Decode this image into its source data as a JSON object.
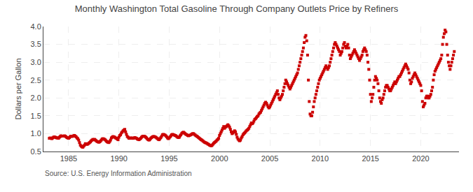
{
  "chart_data": {
    "type": "scatter",
    "title": "Monthly Washington Total Gasoline Through Company Outlets Price by Refiners",
    "y_label": "Dollars per Gallon",
    "source": "Source: U.S. Energy Information Administration",
    "color": "#CC0000",
    "marker": "square",
    "grid": true,
    "xlim": [
      1982.5,
      2023.8
    ],
    "xticks": [
      1985,
      1990,
      1995,
      2000,
      2005,
      2010,
      2015,
      2020
    ],
    "ylim": [
      0.5,
      4.0
    ],
    "yticks": [
      0.5,
      {
        "value": 1.0,
        "label": "1.0"
      },
      1.5,
      {
        "value": 2.0,
        "label": "2.0"
      },
      2.5,
      {
        "value": 3.0,
        "label": "3.0"
      },
      3.5,
      {
        "value": 4.0,
        "label": "4.0"
      }
    ],
    "x": [
      1983.083,
      1983.167,
      1983.25,
      1983.333,
      1983.417,
      1983.5,
      1983.583,
      1983.667,
      1983.75,
      1983.833,
      1983.917,
      1984.0,
      1984.083,
      1984.167,
      1984.25,
      1984.333,
      1984.417,
      1984.5,
      1984.583,
      1984.667,
      1984.75,
      1984.833,
      1984.917,
      1985.0,
      1985.083,
      1985.167,
      1985.25,
      1985.333,
      1985.417,
      1985.5,
      1985.583,
      1985.667,
      1985.75,
      1985.833,
      1985.917,
      1986.0,
      1986.083,
      1986.167,
      1986.25,
      1986.333,
      1986.417,
      1986.5,
      1986.583,
      1986.667,
      1986.75,
      1986.833,
      1986.917,
      1987.0,
      1987.083,
      1987.167,
      1987.25,
      1987.333,
      1987.417,
      1987.5,
      1987.583,
      1987.667,
      1987.75,
      1987.833,
      1987.917,
      1988.0,
      1988.083,
      1988.167,
      1988.25,
      1988.333,
      1988.417,
      1988.5,
      1988.583,
      1988.667,
      1988.75,
      1988.833,
      1988.917,
      1989.0,
      1989.083,
      1989.167,
      1989.25,
      1989.333,
      1989.417,
      1989.5,
      1989.583,
      1989.667,
      1989.75,
      1989.833,
      1989.917,
      1990.0,
      1990.083,
      1990.167,
      1990.25,
      1990.333,
      1990.417,
      1990.5,
      1990.583,
      1990.667,
      1990.75,
      1990.833,
      1990.917,
      1991.0,
      1991.083,
      1991.167,
      1991.25,
      1991.333,
      1991.417,
      1991.5,
      1991.583,
      1991.667,
      1991.75,
      1991.833,
      1991.917,
      1992.0,
      1992.083,
      1992.167,
      1992.25,
      1992.333,
      1992.417,
      1992.5,
      1992.583,
      1992.667,
      1992.75,
      1992.833,
      1992.917,
      1993.0,
      1993.083,
      1993.167,
      1993.25,
      1993.333,
      1993.417,
      1993.5,
      1993.583,
      1993.667,
      1993.75,
      1993.833,
      1993.917,
      1994.0,
      1994.083,
      1994.167,
      1994.25,
      1994.333,
      1994.417,
      1994.5,
      1994.583,
      1994.667,
      1994.75,
      1994.833,
      1994.917,
      1995.0,
      1995.083,
      1995.167,
      1995.25,
      1995.333,
      1995.417,
      1995.5,
      1995.583,
      1995.667,
      1995.75,
      1995.833,
      1995.917,
      1996.0,
      1996.083,
      1996.167,
      1996.25,
      1996.333,
      1996.417,
      1996.5,
      1996.583,
      1996.667,
      1996.75,
      1996.833,
      1996.917,
      1997.0,
      1997.083,
      1997.167,
      1997.25,
      1997.333,
      1997.417,
      1997.5,
      1997.583,
      1997.667,
      1997.75,
      1997.833,
      1997.917,
      1998.0,
      1998.083,
      1998.167,
      1998.25,
      1998.333,
      1998.417,
      1998.5,
      1998.583,
      1998.667,
      1998.75,
      1998.833,
      1998.917,
      1999.0,
      1999.083,
      1999.167,
      1999.25,
      1999.333,
      1999.417,
      1999.5,
      1999.583,
      1999.667,
      1999.75,
      1999.833,
      1999.917,
      2000.0,
      2000.083,
      2000.167,
      2000.25,
      2000.333,
      2000.417,
      2000.5,
      2000.583,
      2000.667,
      2000.75,
      2000.833,
      2000.917,
      2001.0,
      2001.083,
      2001.167,
      2001.25,
      2001.333,
      2001.417,
      2001.5,
      2001.583,
      2001.667,
      2001.75,
      2001.833,
      2001.917,
      2002.0,
      2002.083,
      2002.167,
      2002.25,
      2002.333,
      2002.417,
      2002.5,
      2002.583,
      2002.667,
      2002.75,
      2002.833,
      2002.917,
      2003.0,
      2003.083,
      2003.167,
      2003.25,
      2003.333,
      2003.417,
      2003.5,
      2003.583,
      2003.667,
      2003.75,
      2003.833,
      2003.917,
      2004.0,
      2004.083,
      2004.167,
      2004.25,
      2004.333,
      2004.417,
      2004.5,
      2004.583,
      2004.667,
      2004.75,
      2004.833,
      2004.917,
      2005.0,
      2005.083,
      2005.167,
      2005.25,
      2005.333,
      2005.417,
      2005.5,
      2005.583,
      2005.667,
      2005.75,
      2005.833,
      2005.917,
      2006.0,
      2006.083,
      2006.167,
      2006.25,
      2006.333,
      2006.417,
      2006.5,
      2006.583,
      2006.667,
      2006.75,
      2006.833,
      2006.917,
      2007.0,
      2007.083,
      2007.167,
      2007.25,
      2007.333,
      2007.417,
      2007.5,
      2007.583,
      2007.667,
      2007.75,
      2007.833,
      2007.917,
      2008.0,
      2008.083,
      2008.167,
      2008.25,
      2008.333,
      2008.417,
      2008.5,
      2008.583,
      2008.667,
      2008.75,
      2008.833,
      2008.917,
      2009.0,
      2009.083,
      2009.167,
      2009.25,
      2009.333,
      2009.417,
      2009.5,
      2009.583,
      2009.667,
      2009.75,
      2009.833,
      2009.917,
      2010.0,
      2010.083,
      2010.167,
      2010.25,
      2010.333,
      2010.417,
      2010.5,
      2010.583,
      2010.667,
      2010.75,
      2010.833,
      2010.917,
      2011.0,
      2011.083,
      2011.167,
      2011.25,
      2011.333,
      2011.417,
      2011.5,
      2011.583,
      2011.667,
      2011.75,
      2011.833,
      2011.917,
      2012.0,
      2012.083,
      2012.167,
      2012.25,
      2012.333,
      2012.417,
      2012.5,
      2012.583,
      2012.667,
      2012.75,
      2012.833,
      2012.917,
      2013.0,
      2013.083,
      2013.167,
      2013.25,
      2013.333,
      2013.417,
      2013.5,
      2013.583,
      2013.667,
      2013.75,
      2013.833,
      2013.917,
      2014.0,
      2014.083,
      2014.167,
      2014.25,
      2014.333,
      2014.417,
      2014.5,
      2014.583,
      2014.667,
      2014.75,
      2014.833,
      2014.917,
      2015.0,
      2015.083,
      2015.167,
      2015.25,
      2015.333,
      2015.417,
      2015.5,
      2015.583,
      2015.667,
      2015.75,
      2015.833,
      2015.917,
      2016.0,
      2016.083,
      2016.167,
      2016.25,
      2016.333,
      2016.417,
      2016.5,
      2016.583,
      2016.667,
      2016.75,
      2016.833,
      2016.917,
      2017.0,
      2017.083,
      2017.167,
      2017.25,
      2017.333,
      2017.417,
      2017.5,
      2017.583,
      2017.667,
      2017.75,
      2017.833,
      2017.917,
      2018.0,
      2018.083,
      2018.167,
      2018.25,
      2018.333,
      2018.417,
      2018.5,
      2018.583,
      2018.667,
      2018.75,
      2018.833,
      2018.917,
      2019.0,
      2019.083,
      2019.167,
      2019.25,
      2019.333,
      2019.417,
      2019.5,
      2019.583,
      2019.667,
      2019.75,
      2019.833,
      2019.917,
      2020.0,
      2020.083,
      2020.167,
      2020.25,
      2020.333,
      2020.417,
      2020.5,
      2020.583,
      2020.667,
      2020.75,
      2020.833,
      2020.917,
      2021.0,
      2021.083,
      2021.167,
      2021.25,
      2021.333,
      2021.417,
      2021.5,
      2021.583,
      2021.667,
      2021.75,
      2021.833,
      2021.917,
      2022.0,
      2022.083,
      2022.167,
      2022.25,
      2022.333,
      2022.417,
      2022.5,
      2022.583,
      2022.667,
      2022.75,
      2022.833,
      2022.917,
      2023.0,
      2023.083,
      2023.167,
      2023.25,
      2023.333
    ],
    "values": [
      0.87,
      0.88,
      0.87,
      0.86,
      0.88,
      0.9,
      0.91,
      0.9,
      0.89,
      0.88,
      0.88,
      0.87,
      0.9,
      0.92,
      0.94,
      0.93,
      0.93,
      0.93,
      0.94,
      0.93,
      0.91,
      0.89,
      0.88,
      0.87,
      0.89,
      0.92,
      0.93,
      0.92,
      0.93,
      0.94,
      0.95,
      0.93,
      0.91,
      0.88,
      0.86,
      0.82,
      0.75,
      0.68,
      0.65,
      0.63,
      0.62,
      0.65,
      0.68,
      0.72,
      0.71,
      0.7,
      0.71,
      0.73,
      0.75,
      0.77,
      0.8,
      0.82,
      0.84,
      0.83,
      0.84,
      0.82,
      0.8,
      0.78,
      0.77,
      0.76,
      0.77,
      0.79,
      0.82,
      0.85,
      0.86,
      0.85,
      0.84,
      0.82,
      0.79,
      0.77,
      0.76,
      0.75,
      0.78,
      0.82,
      0.88,
      0.9,
      0.92,
      0.91,
      0.9,
      0.88,
      0.87,
      0.85,
      0.83,
      0.9,
      0.95,
      0.97,
      1.02,
      1.05,
      1.08,
      1.1,
      1.12,
      1.05,
      0.98,
      0.92,
      0.9,
      0.87,
      0.87,
      0.88,
      0.88,
      0.87,
      0.87,
      0.88,
      0.89,
      0.88,
      0.87,
      0.85,
      0.84,
      0.83,
      0.85,
      0.87,
      0.9,
      0.92,
      0.93,
      0.93,
      0.92,
      0.9,
      0.88,
      0.85,
      0.83,
      0.82,
      0.84,
      0.87,
      0.89,
      0.91,
      0.92,
      0.92,
      0.91,
      0.9,
      0.88,
      0.86,
      0.84,
      0.83,
      0.86,
      0.89,
      0.93,
      0.97,
      0.98,
      0.97,
      0.96,
      0.94,
      0.91,
      0.88,
      0.86,
      0.88,
      0.91,
      0.94,
      0.97,
      0.98,
      0.97,
      0.96,
      0.95,
      0.94,
      0.92,
      0.9,
      0.89,
      0.9,
      0.94,
      0.97,
      1.01,
      1.03,
      1.04,
      1.02,
      1.0,
      0.98,
      0.97,
      0.95,
      0.94,
      0.95,
      0.96,
      0.97,
      0.99,
      1.0,
      1.0,
      0.98,
      0.96,
      0.94,
      0.93,
      0.91,
      0.89,
      0.87,
      0.85,
      0.83,
      0.82,
      0.8,
      0.78,
      0.76,
      0.75,
      0.74,
      0.73,
      0.71,
      0.7,
      0.68,
      0.67,
      0.66,
      0.67,
      0.7,
      0.73,
      0.75,
      0.77,
      0.79,
      0.82,
      0.84,
      0.87,
      0.95,
      1.0,
      1.05,
      1.1,
      1.15,
      1.2,
      1.15,
      1.18,
      1.2,
      1.22,
      1.25,
      1.22,
      1.18,
      1.12,
      1.05,
      1.0,
      1.02,
      1.05,
      1.08,
      1.05,
      0.98,
      0.9,
      0.85,
      0.82,
      0.8,
      0.82,
      0.88,
      0.92,
      0.97,
      1.0,
      1.02,
      1.05,
      1.08,
      1.1,
      1.12,
      1.15,
      1.2,
      1.25,
      1.3,
      1.28,
      1.3,
      1.35,
      1.4,
      1.42,
      1.45,
      1.48,
      1.5,
      1.55,
      1.58,
      1.6,
      1.65,
      1.7,
      1.75,
      1.8,
      1.85,
      1.88,
      1.85,
      1.8,
      1.75,
      1.72,
      1.75,
      1.8,
      1.85,
      1.9,
      1.95,
      2.0,
      2.05,
      2.1,
      2.15,
      2.2,
      2.1,
      2.0,
      1.95,
      2.0,
      2.05,
      2.1,
      2.2,
      2.3,
      2.4,
      2.5,
      2.45,
      2.4,
      2.35,
      2.3,
      2.25,
      2.3,
      2.35,
      2.4,
      2.45,
      2.5,
      2.55,
      2.6,
      2.65,
      2.7,
      2.8,
      2.9,
      3.0,
      3.1,
      3.2,
      3.3,
      3.4,
      3.55,
      3.7,
      3.75,
      3.6,
      3.2,
      2.5,
      1.9,
      1.55,
      1.5,
      1.5,
      1.6,
      1.75,
      1.9,
      2.0,
      2.1,
      2.2,
      2.3,
      2.4,
      2.5,
      2.55,
      2.6,
      2.65,
      2.7,
      2.75,
      2.8,
      2.85,
      2.9,
      2.85,
      2.8,
      2.85,
      2.9,
      3.0,
      3.1,
      3.2,
      3.3,
      3.4,
      3.5,
      3.55,
      3.5,
      3.45,
      3.4,
      3.35,
      3.3,
      3.2,
      3.25,
      3.3,
      3.4,
      3.5,
      3.55,
      3.45,
      3.4,
      3.45,
      3.5,
      3.4,
      3.2,
      3.1,
      3.15,
      3.2,
      3.25,
      3.3,
      3.35,
      3.3,
      3.25,
      3.2,
      3.15,
      3.1,
      3.05,
      3.1,
      3.15,
      3.2,
      3.3,
      3.35,
      3.4,
      3.35,
      3.3,
      3.2,
      3.0,
      2.8,
      2.5,
      2.1,
      1.9,
      2.0,
      2.1,
      2.3,
      2.5,
      2.6,
      2.55,
      2.5,
      2.4,
      2.2,
      2.0,
      1.9,
      1.85,
      1.95,
      2.0,
      2.1,
      2.2,
      2.3,
      2.35,
      2.35,
      2.3,
      2.25,
      2.2,
      2.2,
      2.25,
      2.3,
      2.35,
      2.4,
      2.45,
      2.4,
      2.45,
      2.5,
      2.55,
      2.6,
      2.6,
      2.65,
      2.7,
      2.75,
      2.8,
      2.85,
      2.9,
      2.95,
      2.9,
      2.85,
      2.8,
      2.7,
      2.5,
      2.4,
      2.45,
      2.55,
      2.6,
      2.65,
      2.7,
      2.65,
      2.6,
      2.55,
      2.5,
      2.45,
      2.4,
      2.35,
      2.2,
      1.9,
      1.75,
      1.8,
      1.85,
      2.0,
      2.05,
      2.05,
      2.0,
      2.0,
      2.05,
      2.1,
      2.2,
      2.3,
      2.5,
      2.65,
      2.75,
      2.8,
      2.85,
      2.9,
      2.95,
      3.0,
      3.05,
      3.1,
      3.2,
      3.5,
      3.7,
      3.8,
      3.9,
      3.85,
      3.5,
      3.2,
      3.0,
      2.9,
      2.8,
      2.9,
      3.0,
      3.1,
      3.2,
      3.3
    ]
  }
}
